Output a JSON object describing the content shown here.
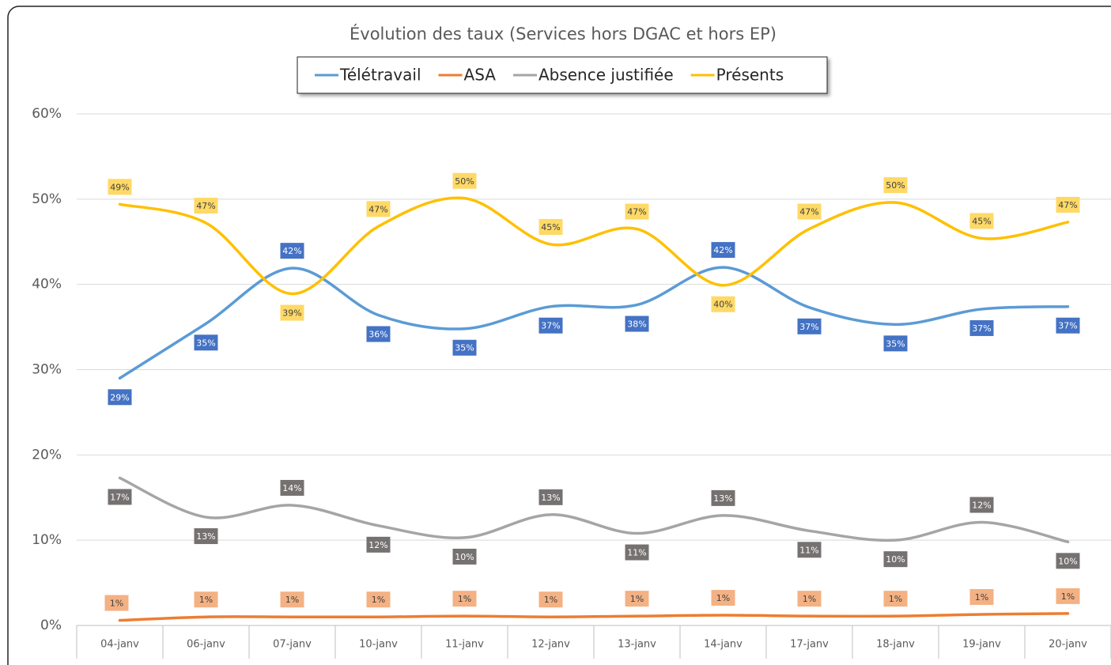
{
  "chart_data": {
    "type": "line",
    "title": "Évolution des taux (Services hors DGAC et hors EP)",
    "categories": [
      "04-janv",
      "06-janv",
      "07-janv",
      "10-janv",
      "11-janv",
      "12-janv",
      "13-janv",
      "14-janv",
      "17-janv",
      "18-janv",
      "19-janv",
      "20-janv"
    ],
    "series": [
      {
        "name": "Télétravail",
        "color": "#5b9bd5",
        "values": [
          29.0,
          35.4,
          41.9,
          36.4,
          34.8,
          37.4,
          37.6,
          42.0,
          37.3,
          35.3,
          37.1,
          37.4
        ],
        "value_labels": [
          "29%",
          "35%",
          "42%",
          "36%",
          "35%",
          "37%",
          "38%",
          "42%",
          "37%",
          "35%",
          "37%",
          "37%"
        ]
      },
      {
        "name": "ASA",
        "color": "#ed7d31",
        "values": [
          0.6,
          1.0,
          1.0,
          1.0,
          1.1,
          1.0,
          1.1,
          1.2,
          1.1,
          1.1,
          1.3,
          1.4
        ],
        "value_labels": [
          "1%",
          "1%",
          "1%",
          "1%",
          "1%",
          "1%",
          "1%",
          "1%",
          "1%",
          "1%",
          "1%",
          "1%"
        ]
      },
      {
        "name": "Absence justifiée",
        "color": "#a5a5a5",
        "values": [
          17.3,
          12.7,
          14.1,
          11.7,
          10.3,
          13.0,
          10.8,
          12.9,
          11.1,
          10.0,
          12.1,
          9.8
        ],
        "value_labels": [
          "17%",
          "13%",
          "14%",
          "12%",
          "10%",
          "13%",
          "11%",
          "13%",
          "11%",
          "10%",
          "12%",
          "10%"
        ]
      },
      {
        "name": "Présents",
        "color": "#ffc000",
        "values": [
          49.4,
          47.2,
          38.9,
          46.8,
          50.1,
          44.7,
          46.5,
          39.9,
          46.5,
          49.6,
          45.4,
          47.3
        ],
        "value_labels": [
          "49%",
          "47%",
          "39%",
          "47%",
          "50%",
          "45%",
          "47%",
          "40%",
          "47%",
          "50%",
          "45%",
          "47%"
        ]
      }
    ],
    "ylim": [
      0,
      60
    ],
    "yticks": [
      {
        "value": 0,
        "label": "0%"
      },
      {
        "value": 10,
        "label": "10%"
      },
      {
        "value": 20,
        "label": "20%"
      },
      {
        "value": 30,
        "label": "30%"
      },
      {
        "value": 40,
        "label": "40%"
      },
      {
        "value": 50,
        "label": "50%"
      },
      {
        "value": 60,
        "label": "60%"
      }
    ],
    "grid": true,
    "legend": "top",
    "smooth": true
  }
}
